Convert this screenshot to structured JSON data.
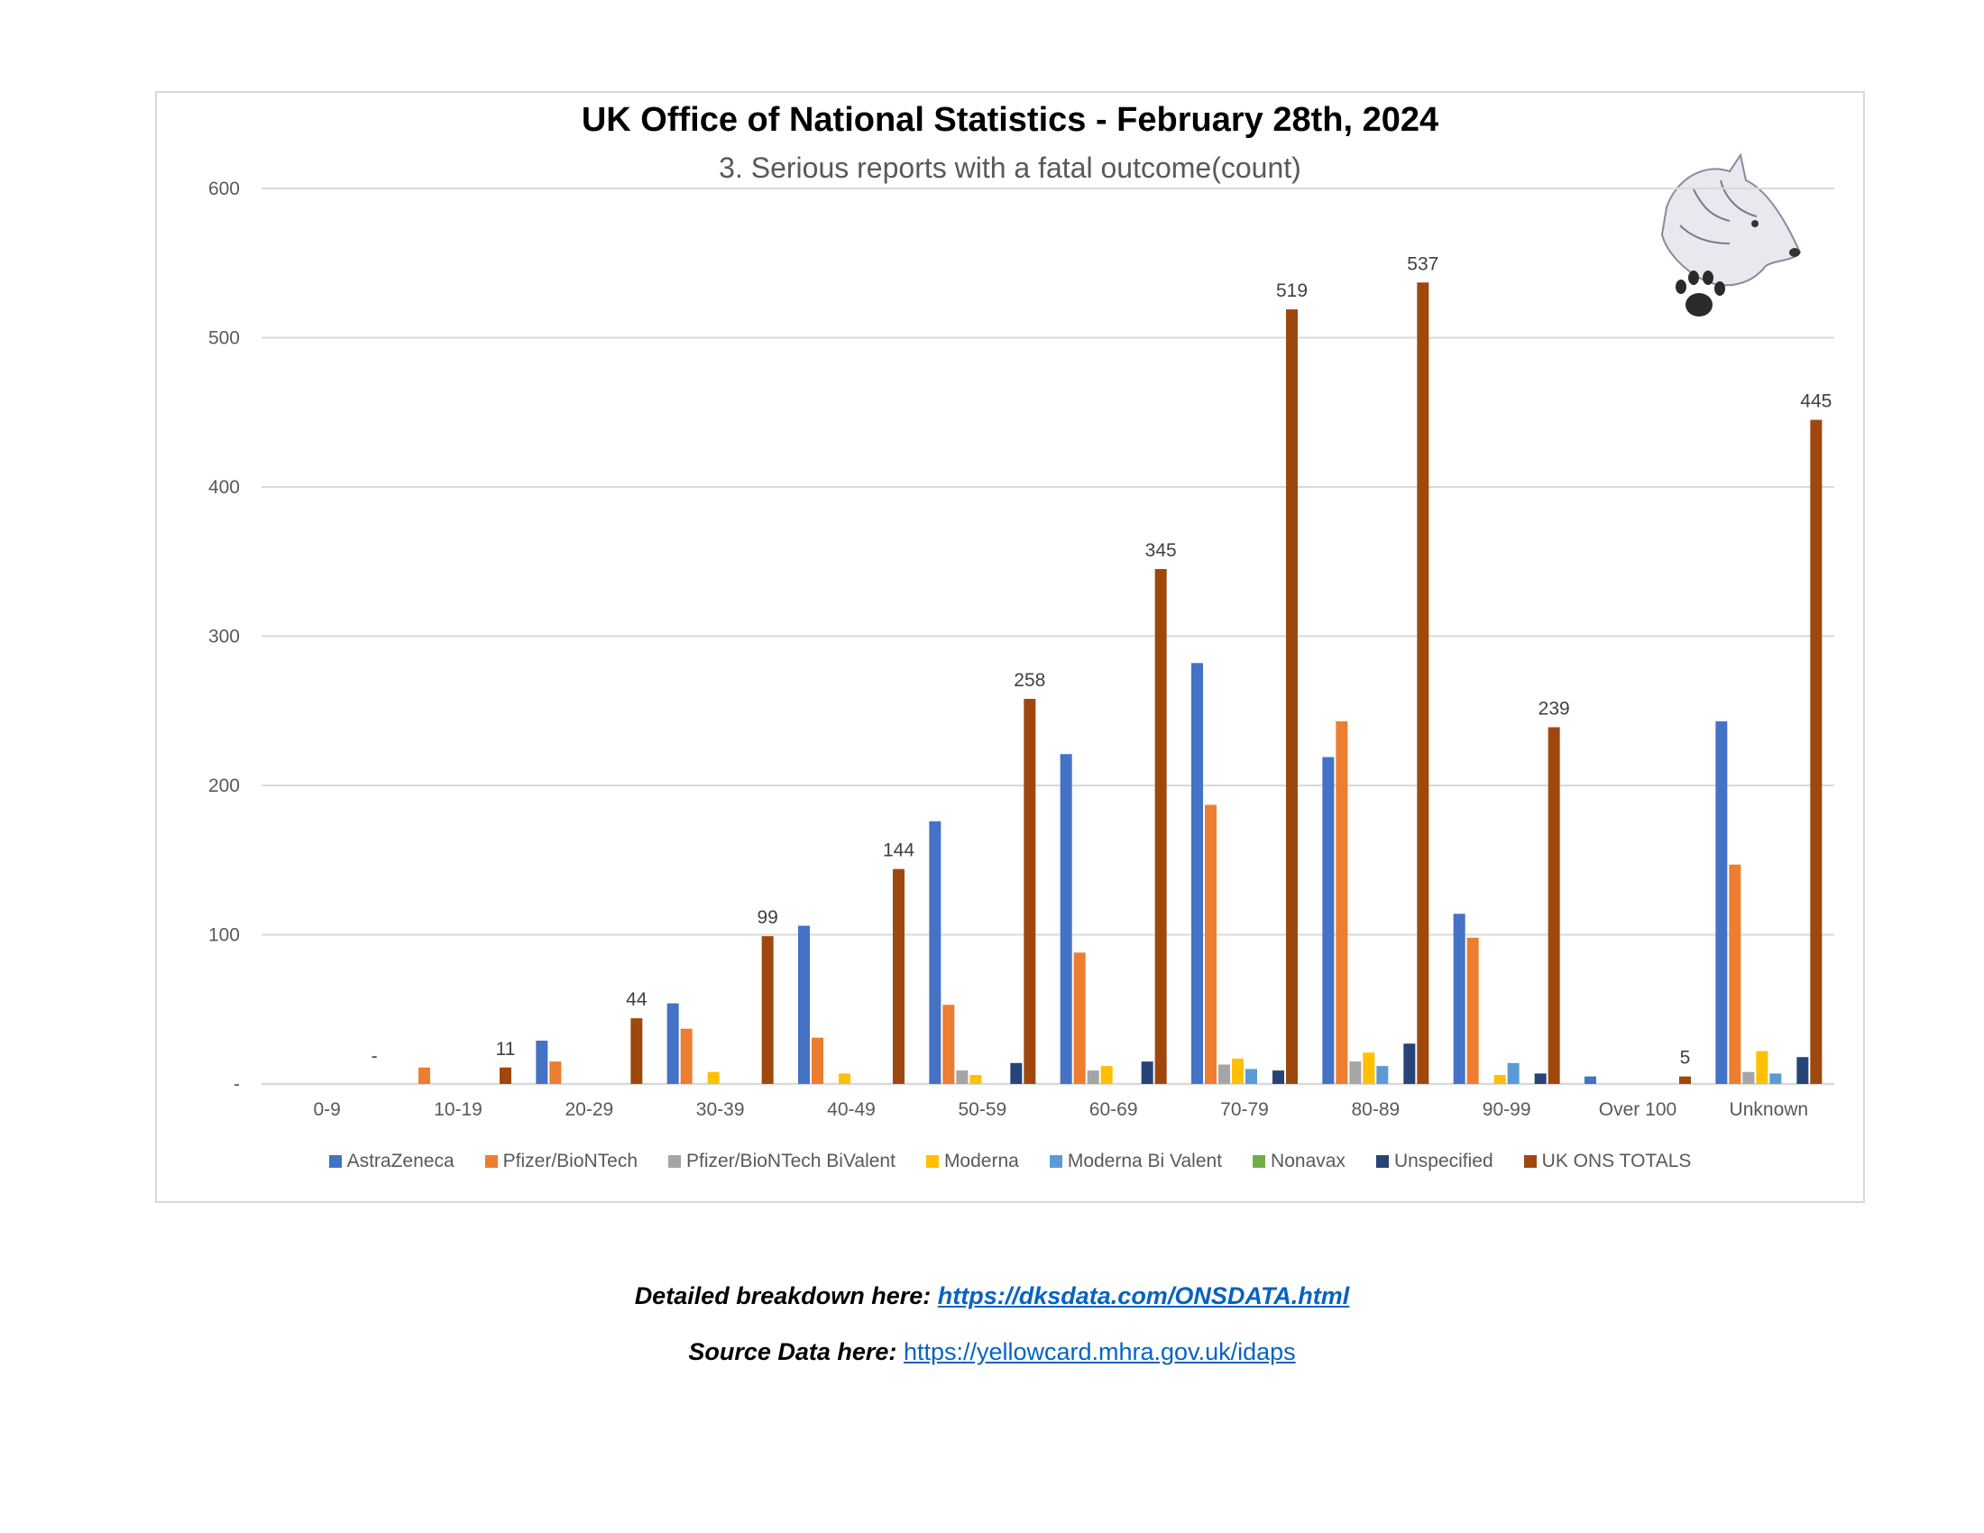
{
  "chart_data": {
    "type": "bar",
    "title": "UK Office of National Statistics - February 28th, 2024",
    "subtitle": "3. Serious reports with a fatal outcome(count)",
    "categories": [
      "0-9",
      "10-19",
      "20-29",
      "30-39",
      "40-49",
      "50-59",
      "60-69",
      "70-79",
      "80-89",
      "90-99",
      "Over 100",
      "Unknown"
    ],
    "ylim": [
      0,
      600
    ],
    "yticks": [
      0,
      100,
      200,
      300,
      400,
      500,
      600
    ],
    "ytick_labels": [
      "-",
      "100",
      "200",
      "300",
      "400",
      "500",
      "600"
    ],
    "grid": true,
    "legend_position": "bottom",
    "series": [
      {
        "name": "AstraZeneca",
        "color": "#4472c4",
        "values": [
          0,
          0,
          29,
          54,
          106,
          176,
          221,
          282,
          219,
          114,
          5,
          243
        ]
      },
      {
        "name": "Pfizer/BioNTech",
        "color": "#ed7d31",
        "values": [
          0,
          11,
          15,
          37,
          31,
          53,
          88,
          187,
          243,
          98,
          0,
          147
        ]
      },
      {
        "name": "Pfizer/BioNTech BiValent",
        "color": "#a5a5a5",
        "values": [
          0,
          0,
          0,
          0,
          0,
          9,
          9,
          13,
          15,
          0,
          0,
          8
        ]
      },
      {
        "name": "Moderna",
        "color": "#ffc000",
        "values": [
          0,
          0,
          0,
          8,
          7,
          6,
          12,
          17,
          21,
          6,
          0,
          22
        ]
      },
      {
        "name": "Moderna Bi Valent",
        "color": "#5b9bd5",
        "values": [
          0,
          0,
          0,
          0,
          0,
          0,
          0,
          10,
          12,
          14,
          0,
          7
        ]
      },
      {
        "name": "Nonavax",
        "color": "#70ad47",
        "values": [
          0,
          0,
          0,
          0,
          0,
          0,
          0,
          0,
          0,
          0,
          0,
          0
        ]
      },
      {
        "name": "Unspecified",
        "color": "#264478",
        "values": [
          0,
          0,
          0,
          0,
          0,
          14,
          15,
          9,
          27,
          7,
          0,
          18
        ]
      },
      {
        "name": "UK ONS TOTALS",
        "color": "#9e480e",
        "values": [
          0,
          11,
          44,
          99,
          144,
          258,
          345,
          519,
          537,
          239,
          5,
          445
        ],
        "data_labels": [
          "-",
          "11",
          "44",
          "99",
          "144",
          "258",
          "345",
          "519",
          "537",
          "239",
          "5",
          "445"
        ]
      }
    ]
  },
  "footer": {
    "detail_label": "Detailed breakdown here: ",
    "detail_link": "https://dksdata.com/ONSDATA.html",
    "source_label": "Source Data here: ",
    "source_link": "https://yellowcard.mhra.gov.uk/idaps"
  }
}
